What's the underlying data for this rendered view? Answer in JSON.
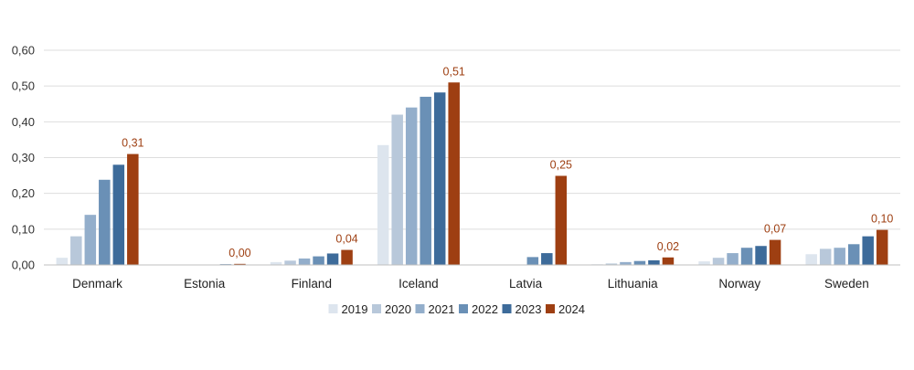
{
  "chart_data": {
    "type": "bar",
    "title": "",
    "xlabel": "",
    "ylabel": "",
    "ylim": [
      0,
      0.6
    ],
    "yticks": [
      "0,00",
      "0,10",
      "0,20",
      "0,30",
      "0,40",
      "0,50",
      "0,60"
    ],
    "ytick_values": [
      0,
      0.1,
      0.2,
      0.3,
      0.4,
      0.5,
      0.6
    ],
    "categories": [
      "Denmark",
      "Estonia",
      "Finland",
      "Iceland",
      "Latvia",
      "Lithuania",
      "Norway",
      "Sweden"
    ],
    "series": [
      {
        "name": "2019",
        "color": "#dde5ee",
        "values": [
          0.02,
          0.0,
          0.008,
          0.335,
          0.0,
          0.002,
          0.01,
          0.03
        ]
      },
      {
        "name": "2020",
        "color": "#b8c8da",
        "values": [
          0.08,
          0.0,
          0.012,
          0.42,
          0.0,
          0.004,
          0.02,
          0.045
        ]
      },
      {
        "name": "2021",
        "color": "#93aecb",
        "values": [
          0.14,
          0.0,
          0.018,
          0.44,
          0.0,
          0.008,
          0.033,
          0.048
        ]
      },
      {
        "name": "2022",
        "color": "#6a90b6",
        "values": [
          0.238,
          0.001,
          0.024,
          0.47,
          0.022,
          0.011,
          0.048,
          0.058
        ]
      },
      {
        "name": "2023",
        "color": "#3d6b9a",
        "values": [
          0.28,
          0.002,
          0.032,
          0.482,
          0.033,
          0.013,
          0.053,
          0.08
        ]
      },
      {
        "name": "2024",
        "color": "#9e3f12",
        "values": [
          0.31,
          0.003,
          0.042,
          0.51,
          0.249,
          0.021,
          0.07,
          0.098
        ]
      }
    ],
    "data_labels_2024": [
      "0,31",
      "0,00",
      "0,04",
      "0,51",
      "0,25",
      "0,02",
      "0,07",
      "0,10"
    ],
    "grid": true,
    "legend_position": "bottom"
  }
}
